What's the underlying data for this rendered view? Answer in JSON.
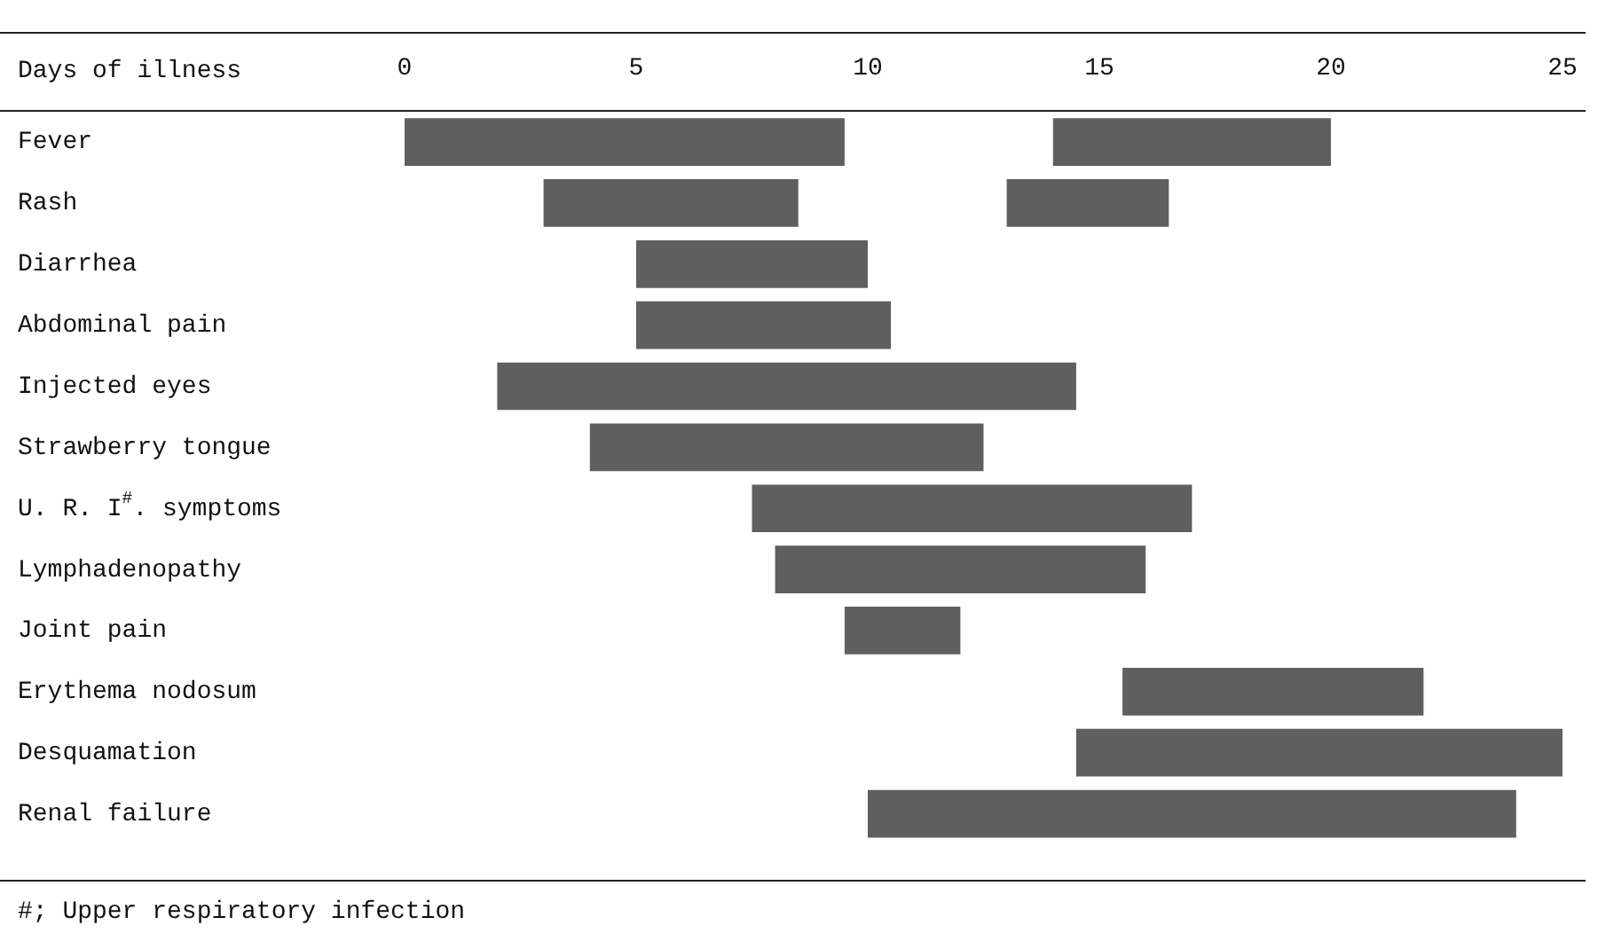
{
  "chart_data": {
    "type": "bar",
    "orientation": "horizontal",
    "xlabel": "Days of illness",
    "categories": [
      "Fever",
      "Rash",
      "Diarrhea",
      "Abdominal pain",
      "Injected eyes",
      "Strawberry tongue",
      "U. R. I$^{#}$. symptoms",
      "Lymphadenopathy",
      "Joint pain",
      "Erythema nodosum",
      "Desquamation",
      "Renal failure"
    ],
    "series": [
      {
        "color": "#5f5f5f",
        "base": [
          0,
          3,
          5,
          5,
          2,
          4,
          7.5,
          8,
          9.5,
          15.5,
          14.5,
          10
        ],
        "values": [
          9.5,
          5.5,
          5,
          5.5,
          12.5,
          8.5,
          9.5,
          8,
          2.5,
          6.5,
          10.5,
          14
        ]
      },
      {
        "color": "#5f5f5f",
        "base": [
          14,
          13,
          null,
          null,
          null,
          null,
          null,
          null,
          null,
          null,
          null,
          null
        ],
        "values": [
          6,
          3.5,
          null,
          null,
          null,
          null,
          null,
          null,
          null,
          null,
          null,
          null
        ]
      }
    ],
    "xlim": [
      0,
      25.5
    ],
    "xticks": [
      0,
      5,
      10,
      15,
      20,
      25
    ],
    "grid": false,
    "legend": false,
    "annotations": [
      "#; Upper respiratory infection"
    ]
  }
}
